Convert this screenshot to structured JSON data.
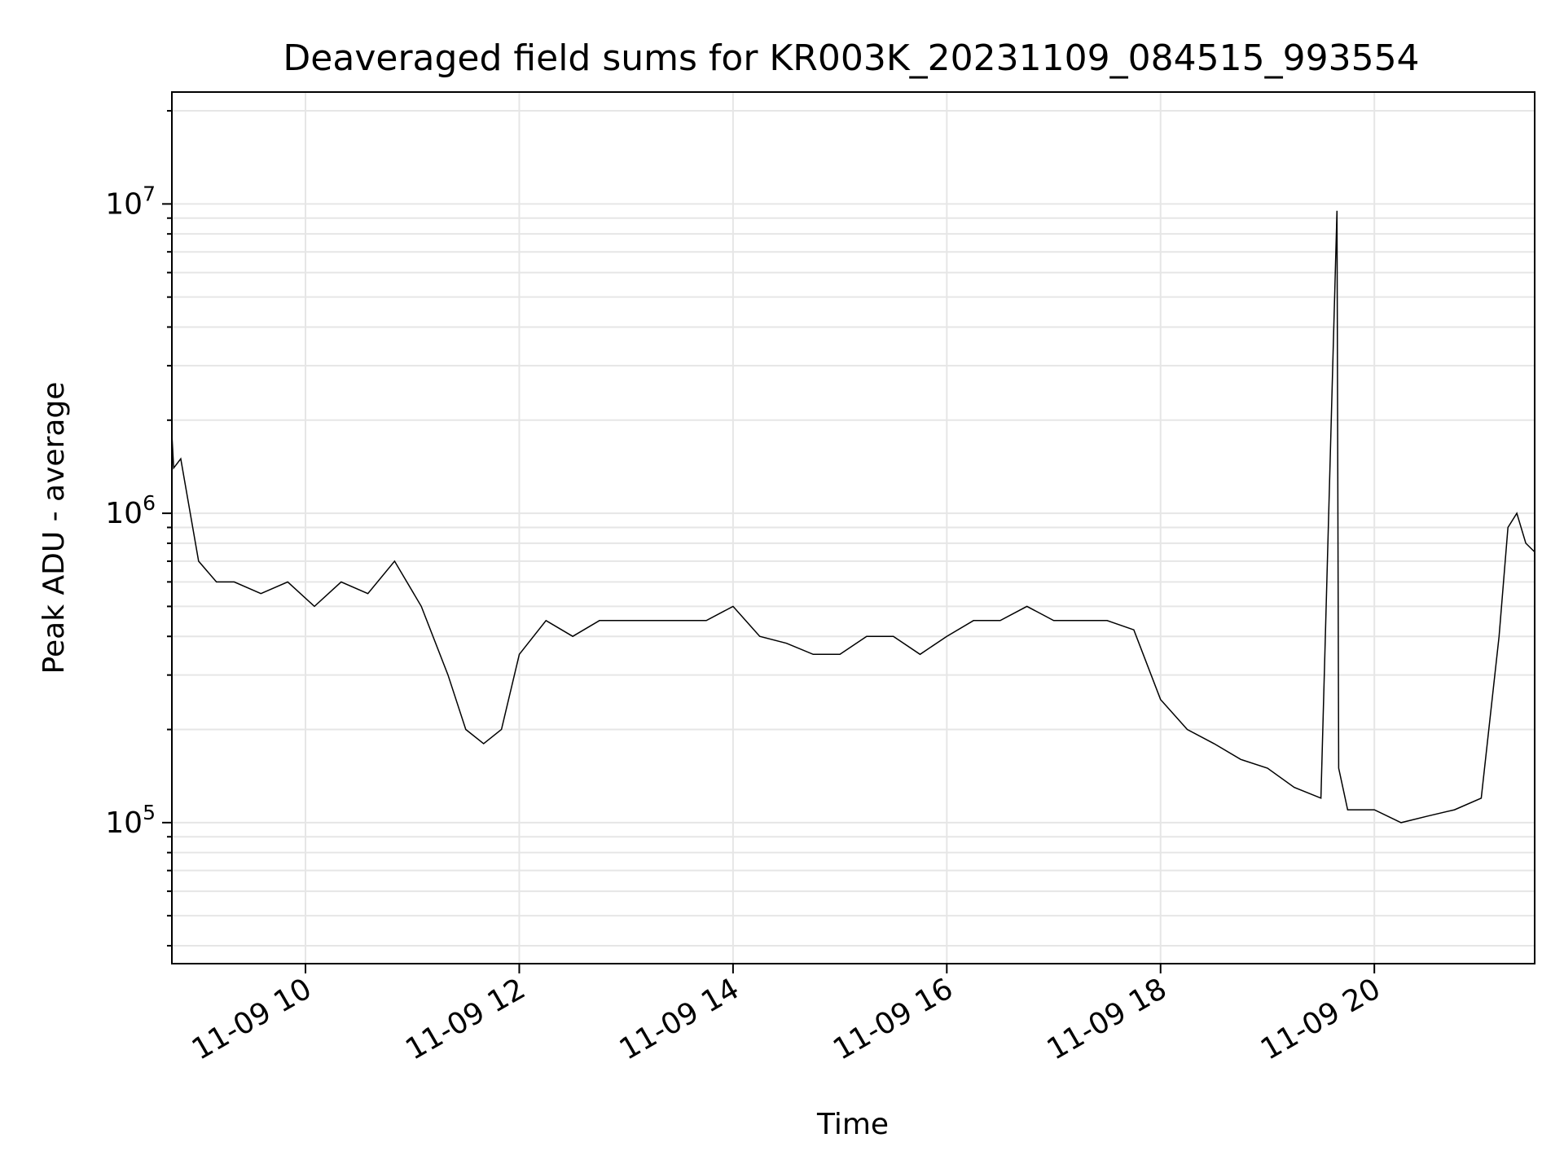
{
  "chart_data": {
    "type": "line",
    "title": "Deaveraged field sums for KR003K_20231109_084515_993554",
    "xlabel": "Time",
    "ylabel": "Peak ADU - average",
    "yscale": "log",
    "ylim": [
      35000,
      23000000
    ],
    "xlim": [
      "2023-11-09 08:45",
      "2023-11-09 21:30"
    ],
    "grid": true,
    "line_color": "#000000",
    "grid_color": "#e6e6e6",
    "x_ticks": [
      {
        "value": "2023-11-09 10:00",
        "label": "11-09 10"
      },
      {
        "value": "2023-11-09 12:00",
        "label": "11-09 12"
      },
      {
        "value": "2023-11-09 14:00",
        "label": "11-09 14"
      },
      {
        "value": "2023-11-09 16:00",
        "label": "11-09 16"
      },
      {
        "value": "2023-11-09 18:00",
        "label": "11-09 18"
      },
      {
        "value": "2023-11-09 20:00",
        "label": "11-09 20"
      }
    ],
    "y_ticks": [
      {
        "value": 100000,
        "base": "10",
        "exp": "5"
      },
      {
        "value": 1000000,
        "base": "10",
        "exp": "6"
      },
      {
        "value": 10000000,
        "base": "10",
        "exp": "7"
      }
    ],
    "series": [
      {
        "x": [
          "2023-11-09 08:45",
          "2023-11-09 08:46",
          "2023-11-09 08:50",
          "2023-11-09 09:00",
          "2023-11-09 09:10",
          "2023-11-09 09:20",
          "2023-11-09 09:35",
          "2023-11-09 09:50",
          "2023-11-09 10:05",
          "2023-11-09 10:20",
          "2023-11-09 10:35",
          "2023-11-09 10:50",
          "2023-11-09 11:05",
          "2023-11-09 11:20",
          "2023-11-09 11:30",
          "2023-11-09 11:40",
          "2023-11-09 11:50",
          "2023-11-09 12:00",
          "2023-11-09 12:15",
          "2023-11-09 12:30",
          "2023-11-09 12:45",
          "2023-11-09 13:00",
          "2023-11-09 13:15",
          "2023-11-09 13:30",
          "2023-11-09 13:45",
          "2023-11-09 14:00",
          "2023-11-09 14:15",
          "2023-11-09 14:30",
          "2023-11-09 14:45",
          "2023-11-09 15:00",
          "2023-11-09 15:15",
          "2023-11-09 15:30",
          "2023-11-09 15:45",
          "2023-11-09 16:00",
          "2023-11-09 16:15",
          "2023-11-09 16:30",
          "2023-11-09 16:45",
          "2023-11-09 17:00",
          "2023-11-09 17:15",
          "2023-11-09 17:30",
          "2023-11-09 17:45",
          "2023-11-09 18:00",
          "2023-11-09 18:15",
          "2023-11-09 18:30",
          "2023-11-09 18:45",
          "2023-11-09 19:00",
          "2023-11-09 19:15",
          "2023-11-09 19:30",
          "2023-11-09 19:39",
          "2023-11-09 19:40",
          "2023-11-09 19:45",
          "2023-11-09 20:00",
          "2023-11-09 20:15",
          "2023-11-09 20:30",
          "2023-11-09 20:45",
          "2023-11-09 21:00",
          "2023-11-09 21:10",
          "2023-11-09 21:15",
          "2023-11-09 21:20",
          "2023-11-09 21:25",
          "2023-11-09 21:30"
        ],
        "y": [
          1800000,
          1400000,
          1500000,
          700000,
          600000,
          600000,
          550000,
          600000,
          500000,
          600000,
          550000,
          700000,
          500000,
          300000,
          200000,
          180000,
          200000,
          350000,
          450000,
          400000,
          450000,
          450000,
          450000,
          450000,
          450000,
          500000,
          400000,
          380000,
          350000,
          350000,
          400000,
          400000,
          350000,
          400000,
          450000,
          450000,
          500000,
          450000,
          450000,
          450000,
          420000,
          250000,
          200000,
          180000,
          160000,
          150000,
          130000,
          120000,
          9500000,
          150000,
          110000,
          110000,
          100000,
          105000,
          110000,
          120000,
          400000,
          900000,
          1000000,
          800000,
          750000
        ]
      }
    ]
  }
}
